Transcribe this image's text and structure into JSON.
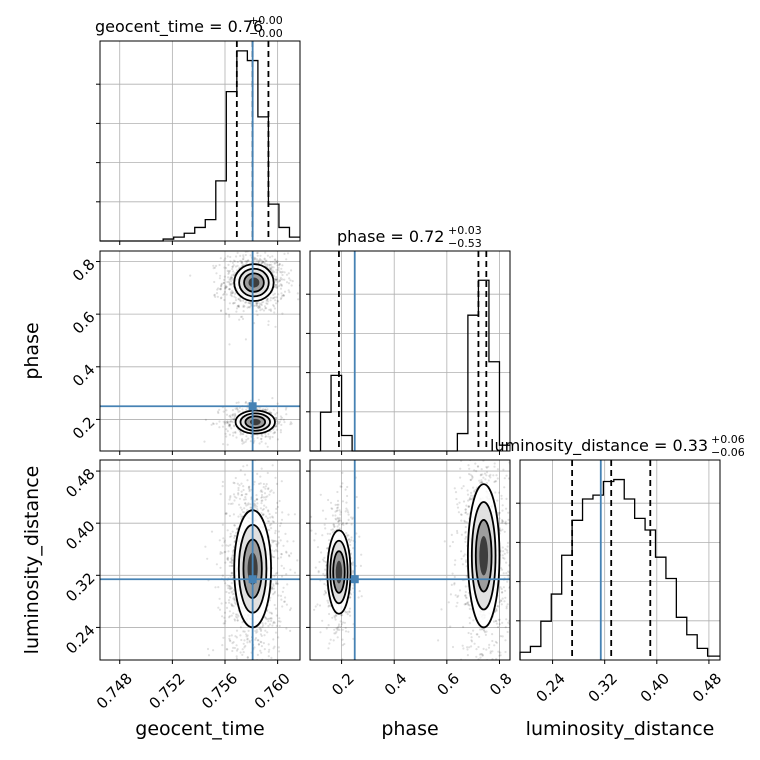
{
  "chart_data": {
    "type": "corner",
    "parameters": [
      "geocent_time",
      "phase",
      "luminosity_distance"
    ],
    "axis_labels": {
      "geocent_time": "geocent_time",
      "phase": "phase",
      "luminosity_distance": "luminosity_distance"
    },
    "ranges": {
      "geocent_time": [
        0.7465,
        0.7617
      ],
      "phase": [
        0.08,
        0.84
      ],
      "luminosity_distance": [
        0.19,
        0.497
      ]
    },
    "ticks": {
      "geocent_time": [
        "0.748",
        "0.752",
        "0.756",
        "0.760"
      ],
      "phase": [
        "0.2",
        "0.4",
        "0.6",
        "0.8"
      ],
      "luminosity_distance": [
        "0.24",
        "0.32",
        "0.40",
        "0.48"
      ]
    },
    "titles": {
      "geocent_time": {
        "prefix": "geocent_time = 0.76",
        "plus": "+0.00",
        "minus": "−0.00"
      },
      "phase": {
        "prefix": "phase = 0.72",
        "plus": "+0.03",
        "minus": "−0.53"
      },
      "luminosity_distance": {
        "prefix": "luminosity_distance = 0.33",
        "plus": "+0.06",
        "minus": "−0.06"
      }
    },
    "truth": {
      "geocent_time": 0.7581,
      "phase": 0.25,
      "luminosity_distance": 0.314
    },
    "quantiles": {
      "geocent_time": [
        0.7569,
        0.7581,
        0.7593
      ],
      "phase": [
        0.19,
        0.72,
        0.75
      ],
      "luminosity_distance": [
        0.27,
        0.33,
        0.39
      ]
    },
    "histograms": {
      "geocent_time": {
        "edges": [
          0.7465,
          0.7473,
          0.7481,
          0.7489,
          0.7497,
          0.7505,
          0.7513,
          0.7521,
          0.7529,
          0.7537,
          0.7545,
          0.7553,
          0.7561,
          0.7569,
          0.7577,
          0.7585,
          0.7593,
          0.7601,
          0.7609,
          0.7617
        ],
        "counts": [
          0,
          0,
          0,
          0,
          0,
          0,
          0.01,
          0.02,
          0.04,
          0.07,
          0.11,
          0.31,
          0.77,
          0.98,
          0.93,
          0.64,
          0.19,
          0.07,
          0.02
        ]
      },
      "phase": {
        "edges": [
          0.08,
          0.12,
          0.16,
          0.2,
          0.24,
          0.28,
          0.32,
          0.36,
          0.4,
          0.44,
          0.48,
          0.52,
          0.56,
          0.6,
          0.64,
          0.68,
          0.72,
          0.76,
          0.8,
          0.84
        ],
        "counts": [
          0,
          0.2,
          0.39,
          0.08,
          0,
          0,
          0,
          0,
          0,
          0,
          0,
          0,
          0,
          0,
          0.09,
          0.7,
          0.88,
          0.46,
          0.03
        ]
      },
      "luminosity_distance": {
        "edges": [
          0.19,
          0.206,
          0.222,
          0.238,
          0.254,
          0.27,
          0.286,
          0.302,
          0.318,
          0.334,
          0.35,
          0.366,
          0.382,
          0.398,
          0.414,
          0.43,
          0.446,
          0.462,
          0.478,
          0.497
        ],
        "counts": [
          0.04,
          0.07,
          0.2,
          0.34,
          0.54,
          0.72,
          0.83,
          0.85,
          0.92,
          0.93,
          0.83,
          0.73,
          0.67,
          0.53,
          0.42,
          0.22,
          0.13,
          0.06,
          0.02
        ]
      }
    },
    "grid": true,
    "colors": {
      "truth": "#4682b4",
      "contour": "#000000",
      "hist": "#000000",
      "grid": "#b0b0b0"
    }
  }
}
